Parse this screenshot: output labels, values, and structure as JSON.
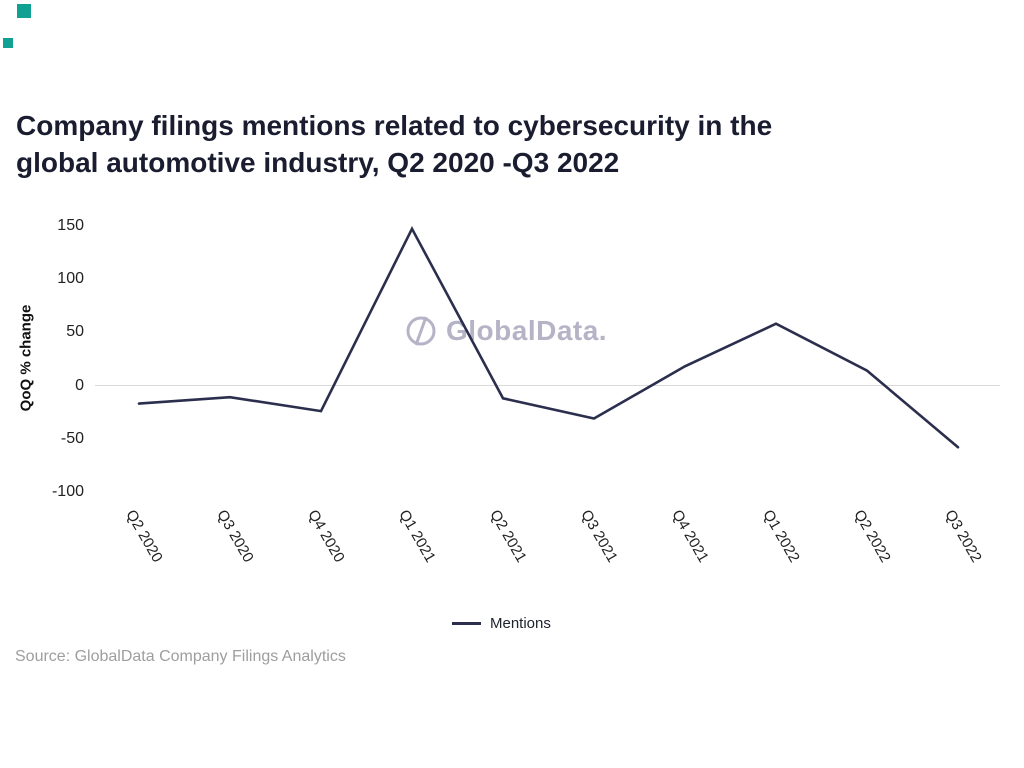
{
  "colors": {
    "accent_teal": "#11a192",
    "line": "#2b2f4d",
    "title_text": "#191d2f",
    "axis_text": "#222222",
    "gridline": "#d9d9d9",
    "watermark": "#b6b3c7",
    "source_text": "#9e9e9e"
  },
  "header": {
    "title_line1": "Company filings mentions related to cybersecurity in the",
    "title_line2": "global automotive industry, Q2 2020 -Q3 2022"
  },
  "watermark": {
    "text": "GlobalData."
  },
  "chart_data": {
    "type": "line",
    "title": "Company filings mentions related to cybersecurity in the global automotive industry, Q2 2020 -Q3 2022",
    "categories": [
      "Q2 2020",
      "Q3 2020",
      "Q4 2020",
      "Q1 2021",
      "Q2 2021",
      "Q3 2021",
      "Q4 2021",
      "Q1 2022",
      "Q2 2022",
      "Q3 2022"
    ],
    "series": [
      {
        "name": "Mentions",
        "values": [
          -17,
          -11,
          -24,
          147,
          -12,
          -31,
          18,
          58,
          14,
          -58
        ]
      }
    ],
    "xlabel": "",
    "ylabel": "QoQ % change",
    "yticks": [
      150,
      100,
      50,
      0,
      -50,
      -100
    ],
    "ylim": [
      -100,
      150
    ],
    "grid": "zero-baseline-only",
    "legend_position": "bottom-center"
  },
  "footer": {
    "source": "Source: GlobalData Company Filings Analytics"
  }
}
